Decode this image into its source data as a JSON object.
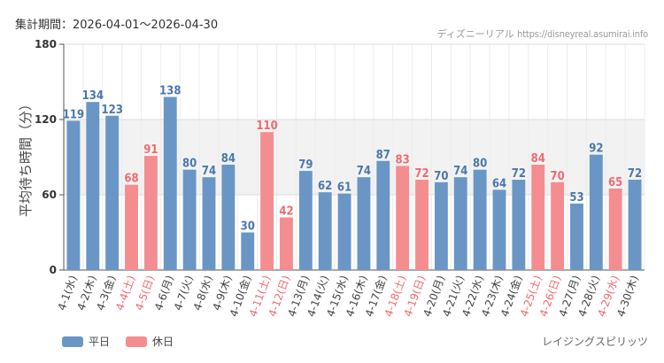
{
  "header": {
    "period": "集計期間：2026-04-01〜2026-04-30",
    "source_name": "ディズニーリアル",
    "source_url": "https://disneyreal.asumirai.info"
  },
  "footer": {
    "attraction": "レイジングスピリッツ"
  },
  "colors": {
    "weekday": "#6a96c6",
    "holiday": "#f48d90",
    "weekday_label": "#4a78ab",
    "holiday_label": "#f06a72",
    "axis_label_default": "#444444"
  },
  "chart_data": {
    "type": "bar",
    "ylabel": "平均待ち時間（分）",
    "ylim": [
      0,
      180
    ],
    "yticks": [
      0,
      60,
      120,
      180
    ],
    "shaded_band": [
      60,
      120
    ],
    "grid": true,
    "legend_position": "bottom-left",
    "categories": [
      "4-1(水)",
      "4-2(木)",
      "4-3(金)",
      "4-4(土)",
      "4-5(日)",
      "4-6(月)",
      "4-7(火)",
      "4-8(水)",
      "4-9(木)",
      "4-10(金)",
      "4-11(土)",
      "4-12(日)",
      "4-13(月)",
      "4-14(火)",
      "4-15(水)",
      "4-16(木)",
      "4-17(金)",
      "4-18(土)",
      "4-19(日)",
      "4-20(月)",
      "4-21(火)",
      "4-22(水)",
      "4-23(木)",
      "4-24(金)",
      "4-25(土)",
      "4-26(日)",
      "4-27(月)",
      "4-28(火)",
      "4-29(水)",
      "4-30(木)"
    ],
    "values": [
      119,
      134,
      123,
      68,
      91,
      138,
      80,
      74,
      84,
      30,
      110,
      42,
      79,
      62,
      61,
      74,
      87,
      83,
      72,
      70,
      74,
      80,
      64,
      72,
      84,
      70,
      53,
      92,
      65,
      72
    ],
    "day_type": [
      "平日",
      "平日",
      "平日",
      "休日",
      "休日",
      "平日",
      "平日",
      "平日",
      "平日",
      "平日",
      "休日",
      "休日",
      "平日",
      "平日",
      "平日",
      "平日",
      "平日",
      "休日",
      "休日",
      "平日",
      "平日",
      "平日",
      "平日",
      "平日",
      "休日",
      "休日",
      "平日",
      "平日",
      "休日",
      "平日"
    ],
    "series": [
      {
        "name": "平日",
        "color": "#6a96c6"
      },
      {
        "name": "休日",
        "color": "#f48d90"
      }
    ]
  }
}
